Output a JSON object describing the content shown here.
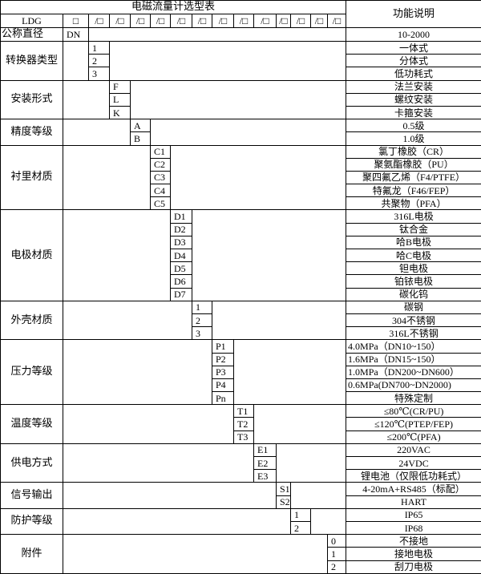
{
  "title": "电磁流量计选型表",
  "function_header": "功能说明",
  "model_row": {
    "prefix": "LDG",
    "first_slot": "□",
    "slot": "/□",
    "slot_count": 13
  },
  "diameter_row": {
    "label": "公称直径",
    "code": "DN",
    "description": "10-2000"
  },
  "groups": [
    {
      "label": "转换器类型",
      "col": 2,
      "codes": [
        "1",
        "2",
        "3"
      ],
      "descriptions": [
        "一体式",
        "分体式",
        "低功耗式"
      ]
    },
    {
      "label": "安装形式",
      "col": 3,
      "codes": [
        "F",
        "L",
        "K"
      ],
      "descriptions": [
        "法兰安装",
        "螺纹安装",
        "卡箍安装"
      ]
    },
    {
      "label": "精度等级",
      "col": 4,
      "codes": [
        "A",
        "B"
      ],
      "descriptions": [
        "0.5级",
        "1.0级"
      ]
    },
    {
      "label": "衬里材质",
      "col": 5,
      "codes": [
        "C1",
        "C2",
        "C3",
        "C4",
        "C5"
      ],
      "descriptions": [
        "氯丁橡胶（CR）",
        "聚氨酯橡胶（PU）",
        "聚四氟乙烯（F4/PTFE）",
        "特氟龙（F46/FEP）",
        "共聚物（PFA）"
      ]
    },
    {
      "label": "电极材质",
      "col": 6,
      "codes": [
        "D1",
        "D2",
        "D3",
        "D4",
        "D5",
        "D6",
        "D7"
      ],
      "descriptions": [
        "316L电极",
        "钛合金",
        "哈B电极",
        "哈C电极",
        "钽电极",
        "铂铱电极",
        "碳化钨"
      ]
    },
    {
      "label": "外壳材质",
      "col": 7,
      "codes": [
        "1",
        "2",
        "3"
      ],
      "descriptions": [
        "碳钢",
        "304不锈钢",
        "316L不锈钢"
      ]
    },
    {
      "label": "压力等级",
      "col": 8,
      "codes": [
        "P1",
        "P2",
        "P3",
        "P4",
        "Pn"
      ],
      "descriptions": [
        "4.0MPa（DN10~150）",
        "1.6MPa（DN15~150）",
        "1.0MPa（DN200~DN600）",
        "0.6MPa(DN700~DN2000)",
        "特殊定制"
      ],
      "left_desc": [
        true,
        true,
        true,
        true,
        false
      ]
    },
    {
      "label": "温度等级",
      "col": 9,
      "codes": [
        "T1",
        "T2",
        "T3"
      ],
      "descriptions": [
        "≤80℃(CR/PU)",
        "≤120℃(PTEP/FEP)",
        "≤200℃(PFA)"
      ]
    },
    {
      "label": "供电方式",
      "col": 10,
      "codes": [
        "E1",
        "E2",
        "E3"
      ],
      "descriptions": [
        "220VAC",
        "24VDC",
        "锂电池（仅限低功耗式）"
      ]
    },
    {
      "label": "信号输出",
      "col": 11,
      "codes": [
        "S1",
        "S2"
      ],
      "descriptions": [
        "4-20mA+RS485（标配）",
        "HART"
      ]
    },
    {
      "label": "防护等级",
      "col": 12,
      "codes": [
        "1",
        "2"
      ],
      "descriptions": [
        "IP65",
        "IP68"
      ]
    },
    {
      "label": "附件",
      "col": 14,
      "codes": [
        "0",
        "1",
        "2"
      ],
      "descriptions": [
        "不接地",
        "接地电极",
        "刮刀电极"
      ]
    }
  ]
}
